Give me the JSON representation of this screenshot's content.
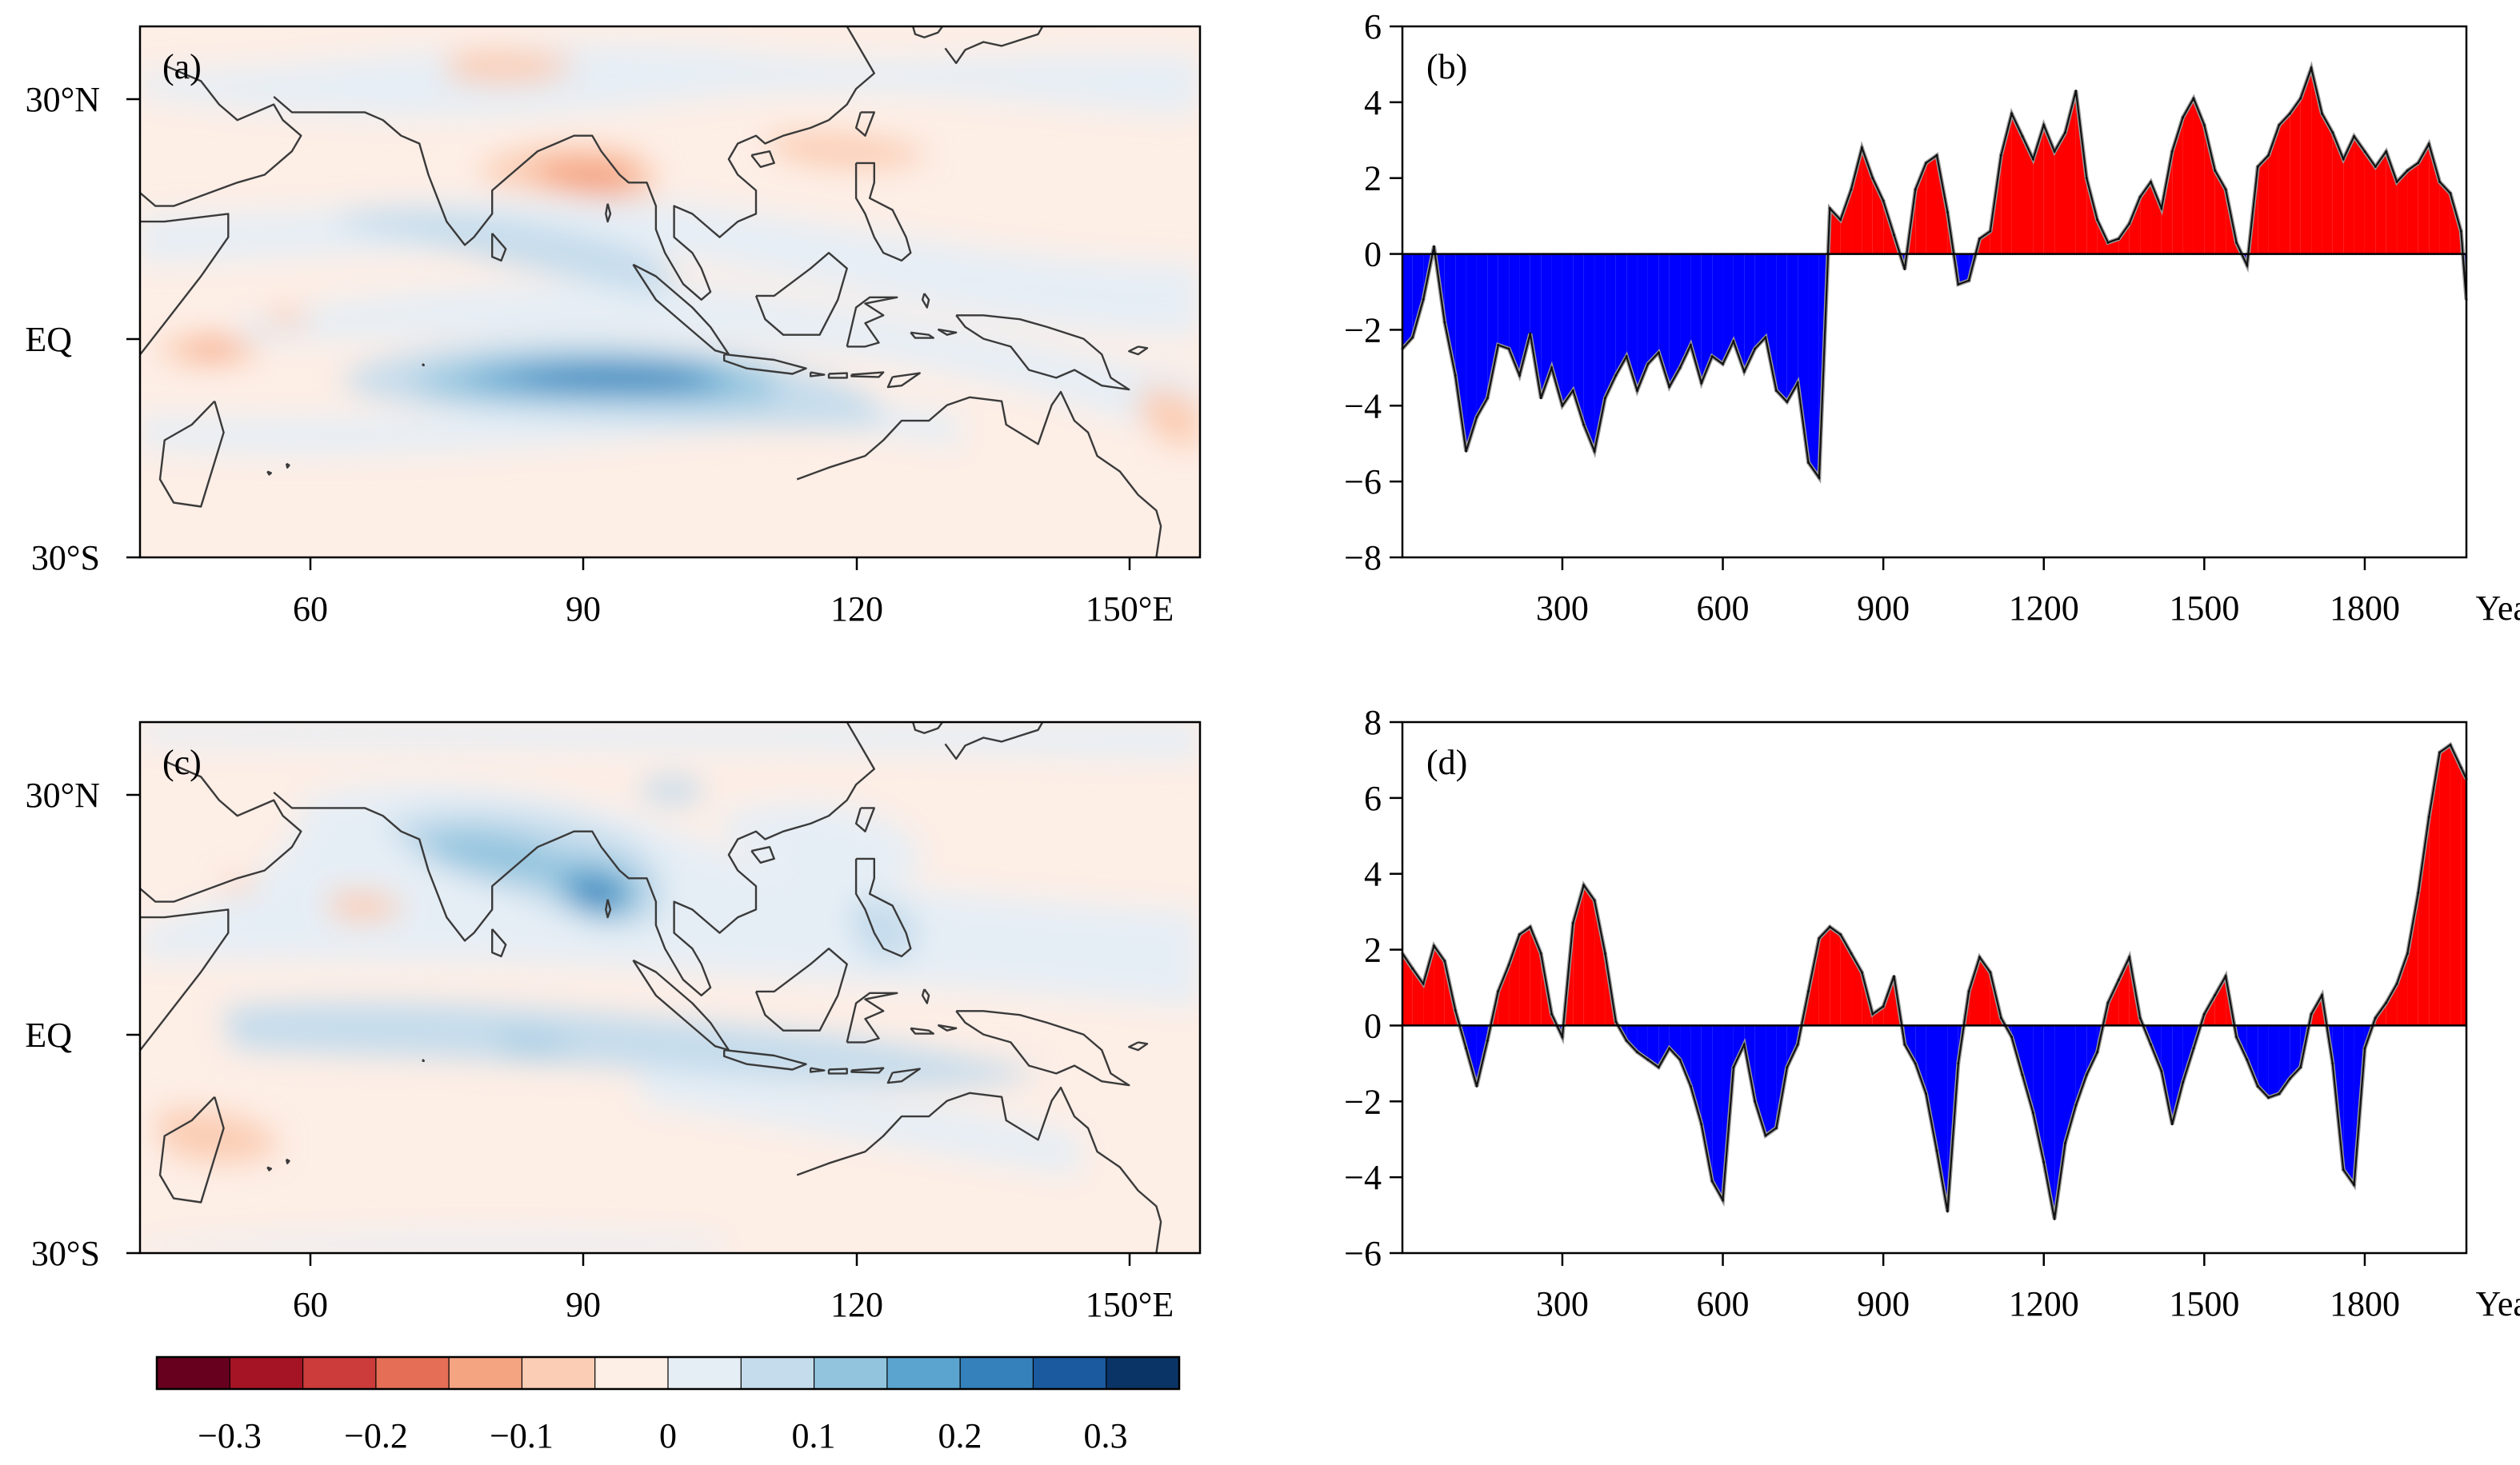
{
  "colors": {
    "palette": [
      "#67001f",
      "#a51425",
      "#cb3c3b",
      "#e46e56",
      "#f5a482",
      "#fbcdb4",
      "#fdeee6",
      "#e6eef5",
      "#c5dcec",
      "#92c4de",
      "#5ba4cf",
      "#3581bb",
      "#1b5a9f",
      "#0a3466"
    ],
    "positive_fill": "#ff0000",
    "negative_fill": "#0000ff"
  },
  "colorbar": {
    "tick_labels": [
      "−0.3",
      "−0.2",
      "−0.1",
      "0",
      "0.1",
      "0.2",
      "0.3"
    ],
    "levels": [
      -0.3,
      -0.25,
      -0.2,
      -0.15,
      -0.1,
      -0.05,
      0,
      0.05,
      0.1,
      0.15,
      0.2,
      0.25,
      0.3
    ]
  },
  "maps": [
    {
      "label": "(a)",
      "lat_labels": [
        "30°N",
        "EQ",
        "30°S"
      ],
      "lon_labels": [
        "60",
        "90",
        "120",
        "150°E"
      ],
      "features": [
        {
          "name": "equatorial-indian-ocean-blue-core",
          "lon": 95,
          "lat": -5,
          "value": 0.22
        },
        {
          "name": "bay-of-bengal-blue-band",
          "lon": 85,
          "lat": 13,
          "value": 0.1
        },
        {
          "name": "tibetan-plateau-red-core",
          "lon": 90,
          "lat": 20,
          "value": -0.15
        },
        {
          "name": "arabian-sea-red-spot",
          "lon": 48,
          "lat": 0,
          "value": -0.12
        },
        {
          "name": "western-pacific-red-spot",
          "lon": 157,
          "lat": -10,
          "value": -0.08
        }
      ]
    },
    {
      "label": "(c)",
      "lat_labels": [
        "30°N",
        "EQ",
        "30°S"
      ],
      "lon_labels": [
        "60",
        "90",
        "120",
        "150°E"
      ],
      "features": [
        {
          "name": "bay-of-bengal-blue-core",
          "lon": 90,
          "lat": 17,
          "value": 0.2
        },
        {
          "name": "indian-subcontinent-blue-band",
          "lon": 80,
          "lat": 20,
          "value": 0.12
        },
        {
          "name": "equatorial-blue-band",
          "lon": 90,
          "lat": -2,
          "value": 0.1
        },
        {
          "name": "philippines-blue-patch",
          "lon": 122,
          "lat": 14,
          "value": 0.08
        },
        {
          "name": "madagascar-red-patch",
          "lon": 52,
          "lat": -12,
          "value": -0.07
        }
      ]
    }
  ],
  "chart_data": [
    {
      "type": "area",
      "label": "(b)",
      "xlabel": "Year",
      "x_ticks": [
        300,
        600,
        900,
        1200,
        1500,
        1800
      ],
      "xlim": [
        1,
        1990
      ],
      "ylim": [
        -8,
        6
      ],
      "y_ticks": [
        -8,
        -6,
        -4,
        -2,
        0,
        2,
        4,
        6
      ],
      "x": [
        1,
        20,
        40,
        60,
        80,
        100,
        120,
        140,
        160,
        180,
        200,
        220,
        240,
        260,
        280,
        300,
        320,
        340,
        360,
        380,
        400,
        420,
        440,
        460,
        480,
        500,
        520,
        540,
        560,
        580,
        600,
        620,
        640,
        660,
        680,
        700,
        720,
        740,
        760,
        780,
        800,
        820,
        840,
        860,
        880,
        900,
        920,
        940,
        960,
        980,
        1000,
        1020,
        1040,
        1060,
        1080,
        1100,
        1120,
        1140,
        1160,
        1180,
        1200,
        1220,
        1240,
        1260,
        1280,
        1300,
        1320,
        1340,
        1360,
        1380,
        1400,
        1420,
        1440,
        1460,
        1480,
        1500,
        1520,
        1540,
        1560,
        1580,
        1600,
        1620,
        1640,
        1660,
        1680,
        1700,
        1720,
        1740,
        1760,
        1780,
        1800,
        1820,
        1840,
        1860,
        1880,
        1900,
        1920,
        1940,
        1960,
        1980,
        1990
      ],
      "values": [
        -2.5,
        -2.2,
        -1.2,
        0.2,
        -1.8,
        -3.2,
        -5.2,
        -4.3,
        -3.8,
        -2.4,
        -2.5,
        -3.2,
        -2.1,
        -3.8,
        -3.0,
        -4.0,
        -3.6,
        -4.5,
        -5.2,
        -3.8,
        -3.2,
        -2.7,
        -3.6,
        -2.9,
        -2.6,
        -3.5,
        -3.0,
        -2.4,
        -3.4,
        -2.7,
        -2.9,
        -2.3,
        -3.1,
        -2.5,
        -2.2,
        -3.6,
        -3.9,
        -3.4,
        -5.5,
        -5.9,
        1.2,
        0.9,
        1.7,
        2.8,
        2.0,
        1.4,
        0.5,
        -0.4,
        1.7,
        2.4,
        2.6,
        1.1,
        -0.8,
        -0.7,
        0.4,
        0.6,
        2.6,
        3.7,
        3.1,
        2.5,
        3.4,
        2.7,
        3.2,
        4.3,
        2.0,
        0.9,
        0.3,
        0.4,
        0.8,
        1.5,
        1.9,
        1.2,
        2.7,
        3.6,
        4.1,
        3.4,
        2.2,
        1.7,
        0.3,
        -0.3,
        2.3,
        2.6,
        3.4,
        3.7,
        4.1,
        4.9,
        3.7,
        3.2,
        2.5,
        3.1,
        2.7,
        2.3,
        2.7,
        1.9,
        2.2,
        2.4,
        2.9,
        1.9,
        1.6,
        0.6,
        -1.2
      ]
    },
    {
      "type": "area",
      "label": "(d)",
      "xlabel": "Year",
      "x_ticks": [
        300,
        600,
        900,
        1200,
        1500,
        1800
      ],
      "xlim": [
        1,
        1990
      ],
      "ylim": [
        -6,
        8
      ],
      "y_ticks": [
        -6,
        -4,
        -2,
        0,
        2,
        4,
        6,
        8
      ],
      "x": [
        1,
        20,
        40,
        60,
        80,
        100,
        120,
        140,
        160,
        180,
        200,
        220,
        240,
        260,
        280,
        300,
        320,
        340,
        360,
        380,
        400,
        420,
        440,
        460,
        480,
        500,
        520,
        540,
        560,
        580,
        600,
        620,
        640,
        660,
        680,
        700,
        720,
        740,
        760,
        780,
        800,
        820,
        840,
        860,
        880,
        900,
        920,
        940,
        960,
        980,
        1000,
        1020,
        1040,
        1060,
        1080,
        1100,
        1120,
        1140,
        1160,
        1180,
        1200,
        1220,
        1240,
        1260,
        1280,
        1300,
        1320,
        1340,
        1360,
        1380,
        1400,
        1420,
        1440,
        1460,
        1480,
        1500,
        1520,
        1540,
        1560,
        1580,
        1600,
        1620,
        1640,
        1660,
        1680,
        1700,
        1720,
        1740,
        1760,
        1780,
        1800,
        1820,
        1840,
        1860,
        1880,
        1900,
        1920,
        1940,
        1960,
        1980,
        1990
      ],
      "values": [
        1.9,
        1.5,
        1.1,
        2.1,
        1.7,
        0.4,
        -0.6,
        -1.6,
        -0.4,
        0.9,
        1.6,
        2.4,
        2.6,
        1.9,
        0.3,
        -0.3,
        2.7,
        3.7,
        3.3,
        1.9,
        0.1,
        -0.4,
        -0.7,
        -0.9,
        -1.1,
        -0.6,
        -0.9,
        -1.6,
        -2.6,
        -4.1,
        -4.6,
        -1.1,
        -0.5,
        -2.0,
        -2.9,
        -2.7,
        -1.1,
        -0.5,
        0.9,
        2.3,
        2.6,
        2.4,
        1.9,
        1.4,
        0.3,
        0.5,
        1.3,
        -0.5,
        -1.0,
        -1.8,
        -3.3,
        -4.9,
        -1.0,
        0.9,
        1.8,
        1.4,
        0.2,
        -0.3,
        -1.3,
        -2.3,
        -3.6,
        -5.1,
        -3.1,
        -2.1,
        -1.3,
        -0.7,
        0.6,
        1.2,
        1.8,
        0.2,
        -0.5,
        -1.2,
        -2.6,
        -1.5,
        -0.6,
        0.3,
        0.8,
        1.3,
        -0.3,
        -0.9,
        -1.6,
        -1.9,
        -1.8,
        -1.4,
        -1.1,
        0.3,
        0.8,
        -1.0,
        -3.8,
        -4.2,
        -0.6,
        0.2,
        0.6,
        1.1,
        1.9,
        3.5,
        5.5,
        7.2,
        7.4,
        6.8,
        6.5
      ]
    }
  ]
}
